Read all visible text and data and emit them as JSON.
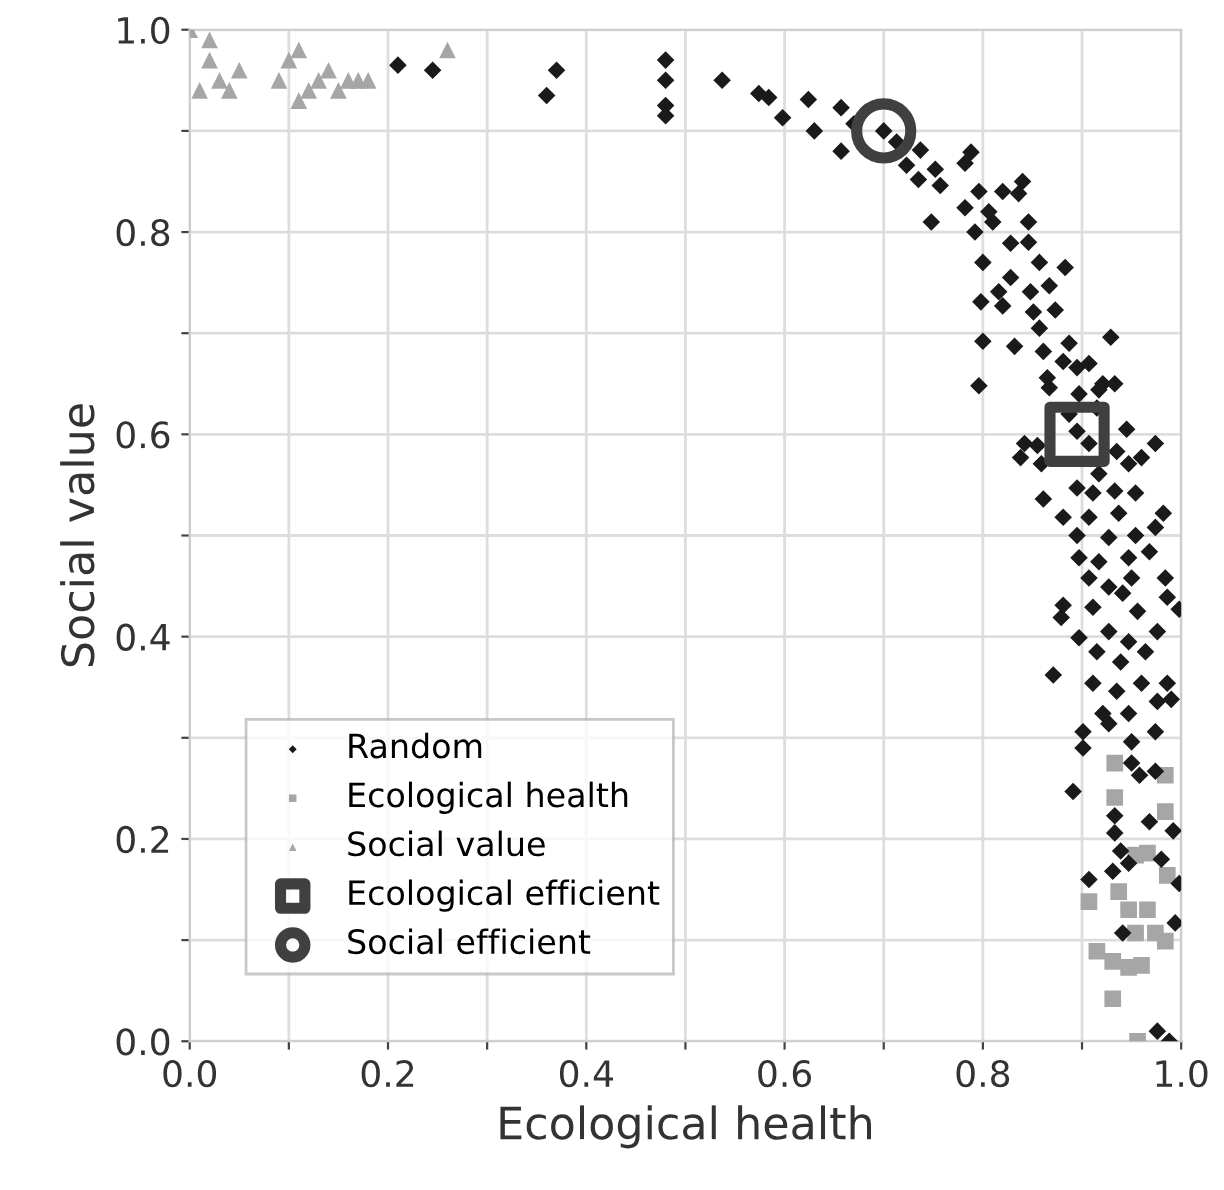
{
  "chart_data": {
    "type": "scatter",
    "xlabel": "Ecological health",
    "ylabel": "Social value",
    "xlim": [
      0,
      1
    ],
    "ylim": [
      0,
      1
    ],
    "xticks": [
      {
        "value": 0,
        "label": "0.0"
      },
      {
        "value": 0.1,
        "label": null
      },
      {
        "value": 0.2,
        "label": "0.2"
      },
      {
        "value": 0.3,
        "label": null
      },
      {
        "value": 0.4,
        "label": "0.4"
      },
      {
        "value": 0.5,
        "label": null
      },
      {
        "value": 0.6,
        "label": "0.6"
      },
      {
        "value": 0.7,
        "label": null
      },
      {
        "value": 0.8,
        "label": "0.8"
      },
      {
        "value": 0.9,
        "label": null
      },
      {
        "value": 1,
        "label": "1.0"
      }
    ],
    "yticks": [
      {
        "value": 0,
        "label": "0.0"
      },
      {
        "value": 0.1,
        "label": null
      },
      {
        "value": 0.2,
        "label": "0.2"
      },
      {
        "value": 0.3,
        "label": null
      },
      {
        "value": 0.4,
        "label": "0.4"
      },
      {
        "value": 0.5,
        "label": null
      },
      {
        "value": 0.6,
        "label": "0.6"
      },
      {
        "value": 0.7,
        "label": null
      },
      {
        "value": 0.8,
        "label": "0.8"
      },
      {
        "value": 0.9,
        "label": null
      },
      {
        "value": 1,
        "label": "1.0"
      }
    ],
    "grid": true,
    "legend": "bottom left",
    "series": [
      {
        "name": "Random",
        "color": "#1a1a1a",
        "marker": "diamond",
        "x": [
          0.21,
          0.245,
          0.37,
          0.36,
          0.48,
          0.48,
          0.48,
          0.48,
          0.537,
          0.574,
          0.584,
          0.598,
          0.624,
          0.63,
          0.657,
          0.657,
          0.67,
          0.7,
          0.713,
          0.723,
          0.737,
          0.735,
          0.752,
          0.757,
          0.748,
          0.782,
          0.788,
          0.782,
          0.796,
          0.82,
          0.84,
          0.836,
          0.806,
          0.792,
          0.81,
          0.846,
          0.828,
          0.846,
          0.8,
          0.828,
          0.857,
          0.883,
          0.816,
          0.848,
          0.867,
          0.798,
          0.82,
          0.851,
          0.873,
          0.857,
          0.8,
          0.832,
          0.861,
          0.887,
          0.929,
          0.881,
          0.895,
          0.907,
          0.796,
          0.865,
          0.921,
          0.867,
          0.897,
          0.917,
          0.933,
          0.915,
          0.887,
          0.945,
          0.974,
          0.935,
          0.842,
          0.855,
          0.838,
          0.859,
          0.895,
          0.907,
          0.947,
          0.96,
          0.917,
          0.895,
          0.861,
          0.911,
          0.933,
          0.954,
          0.881,
          0.907,
          0.937,
          0.982,
          0.895,
          0.927,
          0.954,
          0.974,
          0.897,
          0.917,
          0.947,
          0.968,
          0.907,
          0.927,
          0.95,
          0.984,
          0.881,
          0.879,
          0.911,
          0.941,
          0.956,
          0.986,
          0.998,
          0.897,
          0.927,
          0.947,
          0.976,
          0.915,
          0.939,
          0.964,
          0.871,
          0.911,
          0.935,
          0.96,
          0.986,
          0.99,
          0.976,
          0.921,
          0.947,
          0.901,
          0.927,
          0.95,
          0.974,
          0.901,
          0.891,
          0.95,
          0.958,
          0.974,
          0.933,
          0.968,
          0.992,
          0.933,
          0.939,
          0.98,
          0.907,
          0.931,
          0.947,
          0.998,
          0.994,
          0.941,
          0.976,
          0.988
        ],
        "values": [
          0.965,
          0.96,
          0.96,
          0.935,
          0.97,
          0.95,
          0.925,
          0.915,
          0.95,
          0.937,
          0.933,
          0.913,
          0.931,
          0.9,
          0.88,
          0.923,
          0.907,
          0.9,
          0.889,
          0.866,
          0.881,
          0.852,
          0.862,
          0.846,
          0.81,
          0.868,
          0.879,
          0.824,
          0.84,
          0.84,
          0.85,
          0.838,
          0.82,
          0.8,
          0.81,
          0.81,
          0.789,
          0.79,
          0.77,
          0.755,
          0.77,
          0.765,
          0.741,
          0.741,
          0.747,
          0.731,
          0.727,
          0.721,
          0.723,
          0.705,
          0.692,
          0.687,
          0.682,
          0.69,
          0.696,
          0.672,
          0.666,
          0.67,
          0.648,
          0.656,
          0.65,
          0.646,
          0.64,
          0.644,
          0.65,
          0.626,
          0.62,
          0.605,
          0.591,
          0.583,
          0.591,
          0.589,
          0.577,
          0.571,
          0.603,
          0.591,
          0.571,
          0.577,
          0.561,
          0.547,
          0.536,
          0.542,
          0.544,
          0.542,
          0.518,
          0.518,
          0.522,
          0.522,
          0.5,
          0.498,
          0.5,
          0.508,
          0.478,
          0.474,
          0.478,
          0.484,
          0.458,
          0.449,
          0.458,
          0.458,
          0.431,
          0.419,
          0.429,
          0.443,
          0.425,
          0.439,
          0.427,
          0.399,
          0.405,
          0.395,
          0.405,
          0.385,
          0.375,
          0.385,
          0.362,
          0.354,
          0.346,
          0.354,
          0.354,
          0.338,
          0.336,
          0.324,
          0.324,
          0.306,
          0.314,
          0.296,
          0.306,
          0.29,
          0.247,
          0.275,
          0.263,
          0.267,
          0.223,
          0.217,
          0.208,
          0.206,
          0.188,
          0.18,
          0.16,
          0.168,
          0.176,
          0.156,
          0.117,
          0.107,
          0.01,
          0.0
        ]
      },
      {
        "name": "Ecological health",
        "color": "#a6a6a6",
        "marker": "square",
        "x": [
          0.933,
          0.984,
          0.933,
          0.984,
          0.966,
          0.954,
          0.986,
          0.937,
          0.907,
          0.947,
          0.966,
          0.954,
          0.974,
          0.984,
          0.915,
          0.931,
          0.947,
          0.96,
          0.931,
          0.956
        ],
        "values": [
          0.275,
          0.263,
          0.241,
          0.227,
          0.186,
          0.184,
          0.164,
          0.148,
          0.138,
          0.13,
          0.13,
          0.107,
          0.107,
          0.099,
          0.089,
          0.079,
          0.073,
          0.075,
          0.042,
          0.0
        ]
      },
      {
        "name": "Social value",
        "color": "#a6a6a6",
        "marker": "triangle",
        "x": [
          0.0,
          0.02,
          0.02,
          0.05,
          0.03,
          0.01,
          0.04,
          0.1,
          0.11,
          0.09,
          0.11,
          0.13,
          0.12,
          0.14,
          0.15,
          0.16,
          0.17,
          0.18,
          0.26
        ],
        "values": [
          1.0,
          0.99,
          0.97,
          0.96,
          0.95,
          0.94,
          0.94,
          0.97,
          0.98,
          0.95,
          0.93,
          0.95,
          0.94,
          0.96,
          0.94,
          0.95,
          0.95,
          0.95,
          0.98
        ]
      },
      {
        "name": "Ecological efficient",
        "color": "#404040",
        "marker": "square",
        "x": [
          0.895
        ],
        "values": [
          0.6
        ]
      },
      {
        "name": "Social efficient",
        "color": "#404040",
        "marker": "circle",
        "x": [
          0.7
        ],
        "values": [
          0.9
        ]
      }
    ]
  }
}
